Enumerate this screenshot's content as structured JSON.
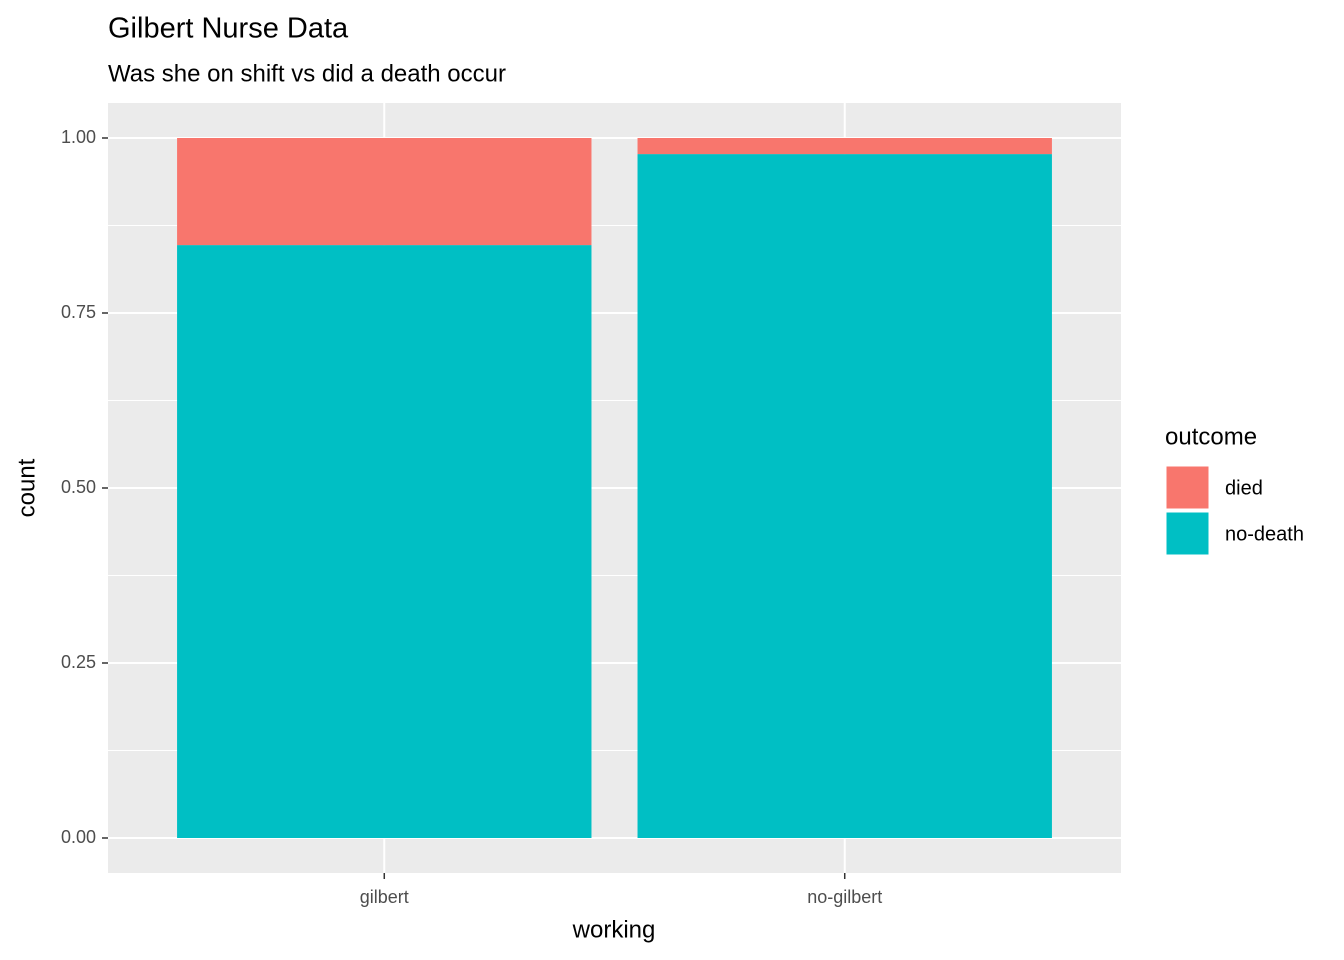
{
  "chart_data": {
    "type": "bar",
    "stacked": true,
    "title": "Gilbert Nurse Data",
    "subtitle": "Was she on shift vs did a death occur",
    "x_label": "working",
    "y_label": "count",
    "categories": [
      "gilbert",
      "no-gilbert"
    ],
    "series": [
      {
        "name": "no-death",
        "color": "#00BFC4",
        "values": [
          0.847,
          0.977
        ]
      },
      {
        "name": "died",
        "color": "#F8766D",
        "values": [
          0.153,
          0.023
        ]
      }
    ],
    "legend_title": "outcome",
    "legend_position": "right",
    "ylim": [
      -0.05,
      1.05
    ],
    "yticks": [
      {
        "value": 0,
        "label": "0.00"
      },
      {
        "value": 0.25,
        "label": "0.25"
      },
      {
        "value": 0.5,
        "label": "0.50"
      },
      {
        "value": 0.75,
        "label": "0.75"
      },
      {
        "value": 1,
        "label": "1.00"
      }
    ],
    "grid": true
  }
}
